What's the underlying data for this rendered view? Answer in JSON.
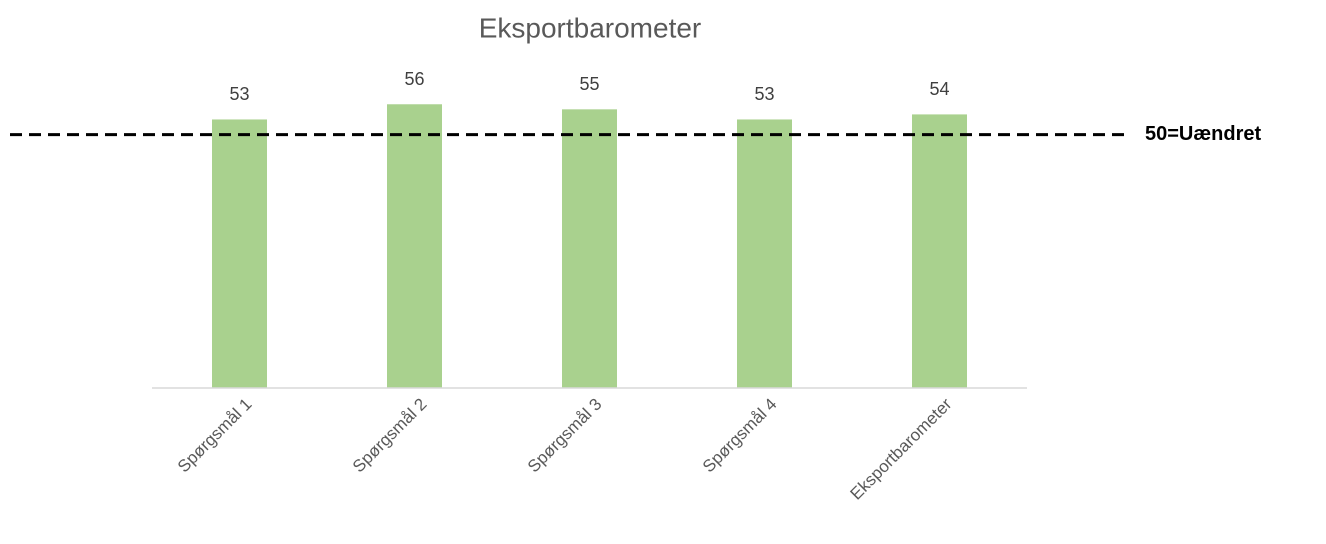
{
  "chart_data": {
    "type": "bar",
    "title": "Eksportbarometer",
    "categories": [
      "Spørgsmål 1",
      "Spørgsmål 2",
      "Spørgsmål 3",
      "Spørgsmål 4",
      "Eksportbarometer"
    ],
    "values": [
      53,
      56,
      55,
      53,
      54
    ],
    "color": "#a9d18e",
    "ylim": [
      0,
      60
    ],
    "reference_line": {
      "value": 50,
      "label": "50=Uændret"
    }
  }
}
